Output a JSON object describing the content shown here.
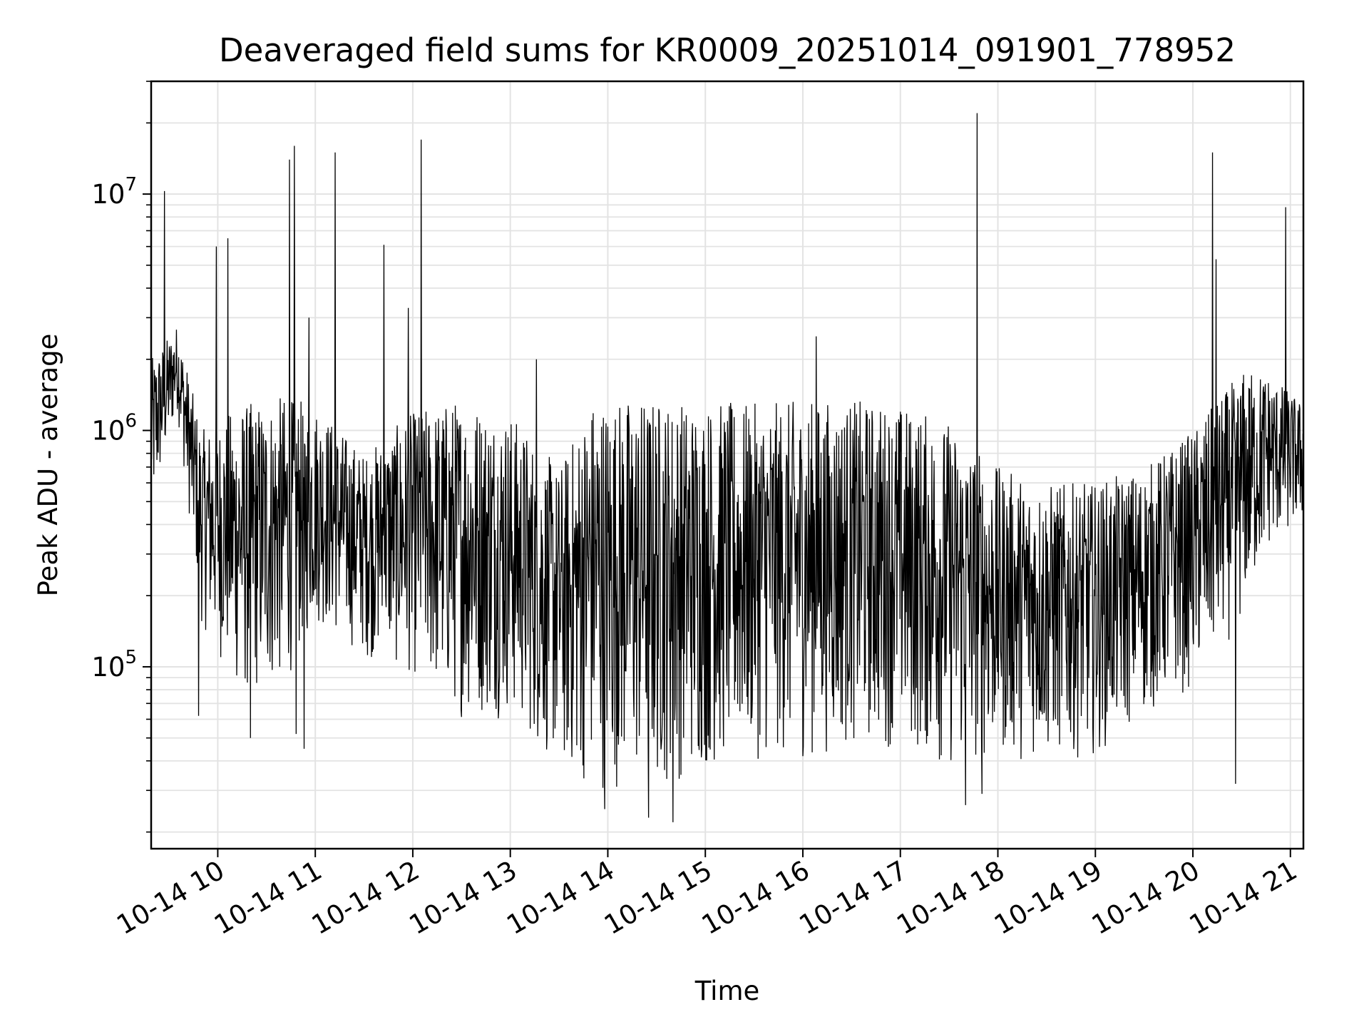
{
  "chart_data": {
    "type": "line",
    "title": "Deaveraged field sums for KR0009_20251014_091901_778952",
    "xlabel": "Time",
    "ylabel": "Peak ADU - average",
    "yscale": "log",
    "grid": true,
    "color": "#000000",
    "xlim": [
      "2025-10-14 09:19:01",
      "2025-10-14 21:08:00"
    ],
    "ylim": [
      17000,
      30000000
    ],
    "xticks": [
      {
        "value": "2025-10-14 10:00",
        "label": "10-14 10"
      },
      {
        "value": "2025-10-14 11:00",
        "label": "10-14 11"
      },
      {
        "value": "2025-10-14 12:00",
        "label": "10-14 12"
      },
      {
        "value": "2025-10-14 13:00",
        "label": "10-14 13"
      },
      {
        "value": "2025-10-14 14:00",
        "label": "10-14 14"
      },
      {
        "value": "2025-10-14 15:00",
        "label": "10-14 15"
      },
      {
        "value": "2025-10-14 16:00",
        "label": "10-14 16"
      },
      {
        "value": "2025-10-14 17:00",
        "label": "10-14 17"
      },
      {
        "value": "2025-10-14 18:00",
        "label": "10-14 18"
      },
      {
        "value": "2025-10-14 19:00",
        "label": "10-14 19"
      },
      {
        "value": "2025-10-14 20:00",
        "label": "10-14 20"
      },
      {
        "value": "2025-10-14 21:00",
        "label": "10-14 21"
      }
    ],
    "yticks": [
      {
        "value": 100000,
        "base": "10",
        "exp": "5"
      },
      {
        "value": 1000000,
        "base": "10",
        "exp": "6"
      },
      {
        "value": 10000000,
        "base": "10",
        "exp": "7"
      }
    ],
    "envelope": [
      {
        "x": "2025-10-14 09:19:01",
        "low": 400000,
        "high": 2000000
      },
      {
        "x": "2025-10-14 09:35",
        "low": 1200000,
        "high": 2800000
      },
      {
        "x": "2025-10-14 09:50",
        "low": 150000,
        "high": 1000000
      },
      {
        "x": "2025-10-14 10:15",
        "low": 70000,
        "high": 1300000
      },
      {
        "x": "2025-10-14 10:40",
        "low": 80000,
        "high": 1400000
      },
      {
        "x": "2025-10-14 11:00",
        "low": 150000,
        "high": 1300000
      },
      {
        "x": "2025-10-14 11:30",
        "low": 110000,
        "high": 800000
      },
      {
        "x": "2025-10-14 12:00",
        "low": 90000,
        "high": 1200000
      },
      {
        "x": "2025-10-14 12:30",
        "low": 60000,
        "high": 1400000
      },
      {
        "x": "2025-10-14 13:00",
        "low": 60000,
        "high": 1200000
      },
      {
        "x": "2025-10-14 13:30",
        "low": 35000,
        "high": 700000
      },
      {
        "x": "2025-10-14 13:50",
        "low": 30000,
        "high": 1400000
      },
      {
        "x": "2025-10-14 14:30",
        "low": 30000,
        "high": 1400000
      },
      {
        "x": "2025-10-14 15:00",
        "low": 35000,
        "high": 1350000
      },
      {
        "x": "2025-10-14 15:30",
        "low": 40000,
        "high": 1300000
      },
      {
        "x": "2025-10-14 16:00",
        "low": 40000,
        "high": 1350000
      },
      {
        "x": "2025-10-14 16:30",
        "low": 45000,
        "high": 1350000
      },
      {
        "x": "2025-10-14 17:00",
        "low": 45000,
        "high": 1300000
      },
      {
        "x": "2025-10-14 17:30",
        "low": 35000,
        "high": 1100000
      },
      {
        "x": "2025-10-14 18:00",
        "low": 40000,
        "high": 700000
      },
      {
        "x": "2025-10-14 18:30",
        "low": 40000,
        "high": 600000
      },
      {
        "x": "2025-10-14 19:00",
        "low": 42000,
        "high": 600000
      },
      {
        "x": "2025-10-14 19:30",
        "low": 60000,
        "high": 700000
      },
      {
        "x": "2025-10-14 20:00",
        "low": 80000,
        "high": 1000000
      },
      {
        "x": "2025-10-14 20:30",
        "low": 150000,
        "high": 1800000
      },
      {
        "x": "2025-10-14 20:45",
        "low": 300000,
        "high": 1800000
      },
      {
        "x": "2025-10-14 21:08:00",
        "low": 400000,
        "high": 1300000
      }
    ],
    "spikes": [
      {
        "x": "2025-10-14 09:27",
        "value": 10300000
      },
      {
        "x": "2025-10-14 09:59",
        "value": 6000000
      },
      {
        "x": "2025-10-14 10:06",
        "value": 6500000
      },
      {
        "x": "2025-10-14 10:44",
        "value": 14000000
      },
      {
        "x": "2025-10-14 10:47",
        "value": 16000000
      },
      {
        "x": "2025-10-14 10:56",
        "value": 3000000
      },
      {
        "x": "2025-10-14 11:12",
        "value": 15000000
      },
      {
        "x": "2025-10-14 11:42",
        "value": 6100000
      },
      {
        "x": "2025-10-14 11:57",
        "value": 3300000
      },
      {
        "x": "2025-10-14 12:05",
        "value": 17000000
      },
      {
        "x": "2025-10-14 13:16",
        "value": 2000000
      },
      {
        "x": "2025-10-14 16:08",
        "value": 2500000
      },
      {
        "x": "2025-10-14 17:47",
        "value": 22000000
      },
      {
        "x": "2025-10-14 20:12",
        "value": 15000000
      },
      {
        "x": "2025-10-14 20:14",
        "value": 5300000
      },
      {
        "x": "2025-10-14 20:57",
        "value": 8800000
      }
    ],
    "dips": [
      {
        "x": "2025-10-14 09:48",
        "value": 62000
      },
      {
        "x": "2025-10-14 10:20",
        "value": 50000
      },
      {
        "x": "2025-10-14 10:48",
        "value": 52000
      },
      {
        "x": "2025-10-14 10:53",
        "value": 45000
      },
      {
        "x": "2025-10-14 13:58",
        "value": 25000
      },
      {
        "x": "2025-10-14 14:25",
        "value": 23000
      },
      {
        "x": "2025-10-14 14:40",
        "value": 22000
      },
      {
        "x": "2025-10-14 17:40",
        "value": 26000
      },
      {
        "x": "2025-10-14 17:50",
        "value": 29000
      },
      {
        "x": "2025-10-14 20:26",
        "value": 32000
      }
    ]
  }
}
